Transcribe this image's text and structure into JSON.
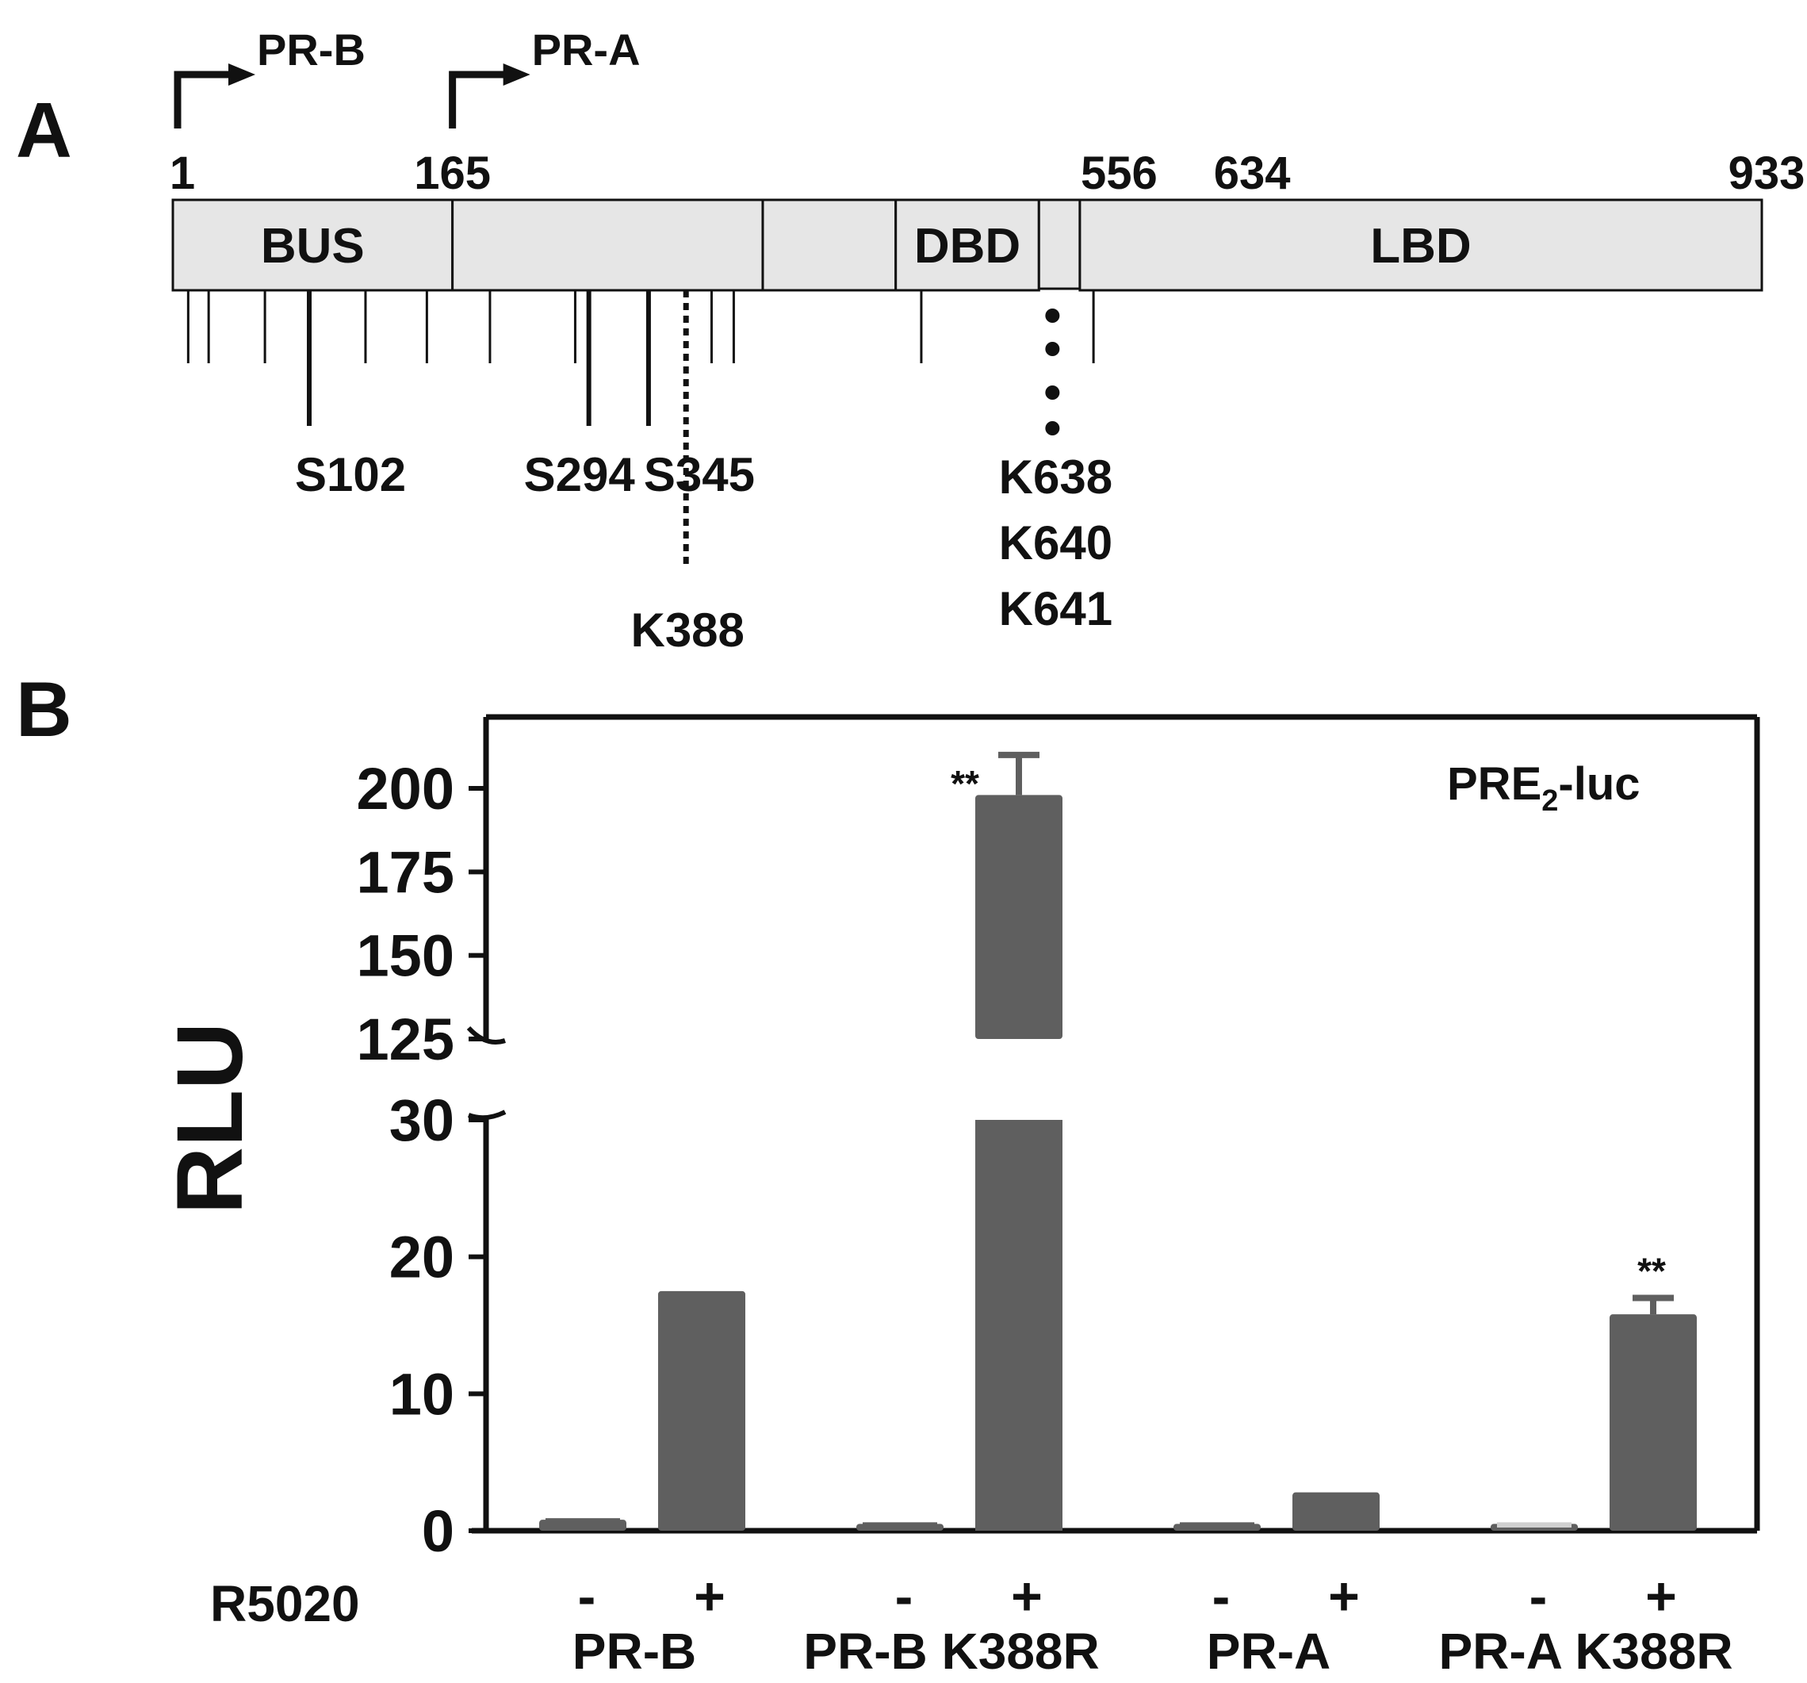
{
  "colors": {
    "bar": "#5f5f5f",
    "bar_light": "#d0d0d0",
    "box_fill": "#e6e6e6",
    "ink": "#111111"
  },
  "panelA": {
    "label": "A",
    "promoters": [
      {
        "name": "PR-B",
        "pos": 1
      },
      {
        "name": "PR-A",
        "pos": 165
      }
    ],
    "positions": [
      {
        "label": "1",
        "pos": 1
      },
      {
        "label": "165",
        "pos": 165
      },
      {
        "label": "556",
        "pos": 556
      },
      {
        "label": "634",
        "pos": 634
      },
      {
        "label": "933",
        "pos": 933
      }
    ],
    "segments": [
      {
        "label": "BUS",
        "from": 1,
        "to": 165
      },
      {
        "label": "",
        "from": 165,
        "to": 347
      },
      {
        "label": "",
        "from": 347,
        "to": 425
      },
      {
        "label": "DBD",
        "from": 425,
        "to": 509
      },
      {
        "label": "",
        "from": 509,
        "to": 533
      },
      {
        "label": "LBD",
        "from": 533,
        "to": 933
      }
    ],
    "minor_sites": [
      10,
      22,
      55,
      114,
      150,
      187,
      237,
      317,
      330,
      440,
      541
    ],
    "major_sites": [
      {
        "label": "S102",
        "pos": 81
      },
      {
        "label": "S294",
        "pos": 245
      },
      {
        "label": "S345",
        "pos": 280
      }
    ],
    "dashed_site": {
      "label": "K388",
      "pos": 302
    },
    "dotted_sites": {
      "labels": [
        "K638",
        "K640",
        "K641"
      ],
      "pos": 516
    }
  },
  "panelB": {
    "label": "B",
    "annotation_main": "PRE",
    "annotation_sub": "2",
    "annotation_suffix": "-luc",
    "treatment_label": "R5020",
    "significance_mark": "**"
  },
  "chart_data": {
    "type": "bar",
    "ylabel": "RLU",
    "broken_axis": true,
    "ylim_lower": [
      0,
      30
    ],
    "ylim_upper": [
      125,
      200
    ],
    "yticks_lower": [
      0,
      10,
      20,
      30
    ],
    "yticks_upper": [
      125,
      150,
      175,
      200
    ],
    "groups": [
      "PR-B",
      "PR-B K388R",
      "PR-A",
      "PR-A K388R"
    ],
    "categories": [
      "-",
      "+",
      "-",
      "+",
      "-",
      "+",
      "-",
      "+"
    ],
    "values": [
      0.8,
      17.5,
      0.5,
      198,
      0.5,
      2.8,
      0.5,
      15.8
    ],
    "errors": [
      0,
      0,
      0,
      12,
      0,
      0,
      0,
      1.2
    ],
    "significance": [
      "",
      "",
      "",
      "**",
      "",
      "",
      "",
      "**"
    ]
  }
}
